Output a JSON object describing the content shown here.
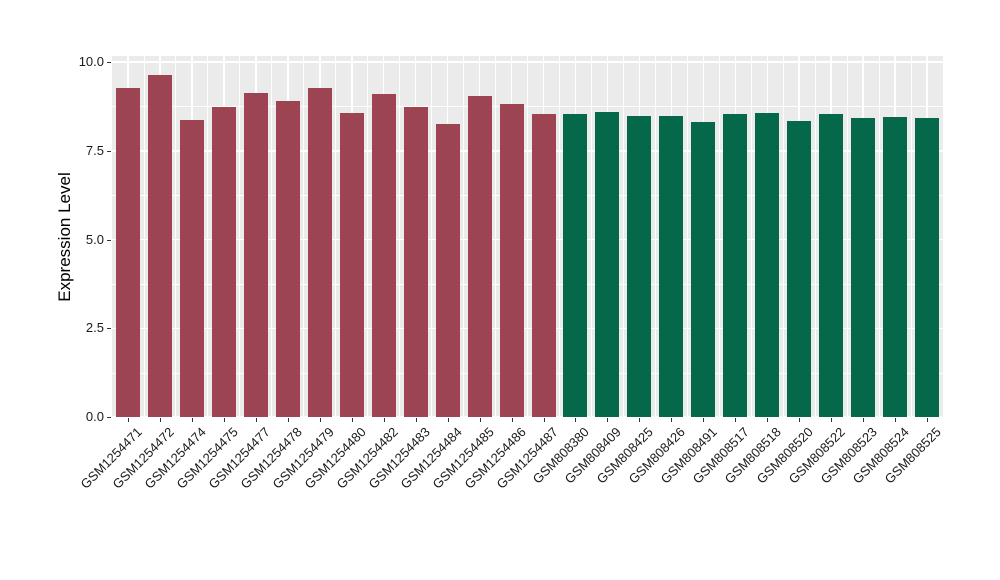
{
  "chart_data": {
    "type": "bar",
    "title": "",
    "xlabel": "",
    "ylabel": "Expression Level",
    "ylim": [
      0,
      10.17
    ],
    "ytick_labels": [
      "0.0",
      "2.5",
      "5.0",
      "7.5",
      "10.0"
    ],
    "ytick_values": [
      0,
      2.5,
      5,
      7.5,
      10
    ],
    "minor_tick_values": [
      1.25,
      3.75,
      6.25,
      8.75
    ],
    "grid": "white major and minor gridlines on gray panel",
    "legend_position": "none",
    "categories": [
      "GSM1254471",
      "GSM1254472",
      "GSM1254474",
      "GSM1254475",
      "GSM1254477",
      "GSM1254478",
      "GSM1254479",
      "GSM1254480",
      "GSM1254482",
      "GSM1254483",
      "GSM1254484",
      "GSM1254485",
      "GSM1254486",
      "GSM1254487",
      "GSM808380",
      "GSM808409",
      "GSM808425",
      "GSM808426",
      "GSM808491",
      "GSM808517",
      "GSM808518",
      "GSM808520",
      "GSM808522",
      "GSM808523",
      "GSM808524",
      "GSM808525"
    ],
    "values": [
      9.27,
      9.65,
      8.38,
      8.73,
      9.13,
      8.89,
      9.26,
      8.56,
      9.1,
      8.73,
      8.26,
      9.04,
      8.82,
      8.54,
      8.53,
      8.58,
      8.47,
      8.49,
      8.32,
      8.53,
      8.56,
      8.35,
      8.53,
      8.42,
      8.46,
      8.42
    ],
    "bar_group_index": [
      0,
      0,
      0,
      0,
      0,
      0,
      0,
      0,
      0,
      0,
      0,
      0,
      0,
      0,
      1,
      1,
      1,
      1,
      1,
      1,
      1,
      1,
      1,
      1,
      1,
      1
    ],
    "group_colors": [
      "#9C4452",
      "#05684A"
    ],
    "panel_bg": "#EBEBEB",
    "grid_color": "#FFFFFF"
  }
}
